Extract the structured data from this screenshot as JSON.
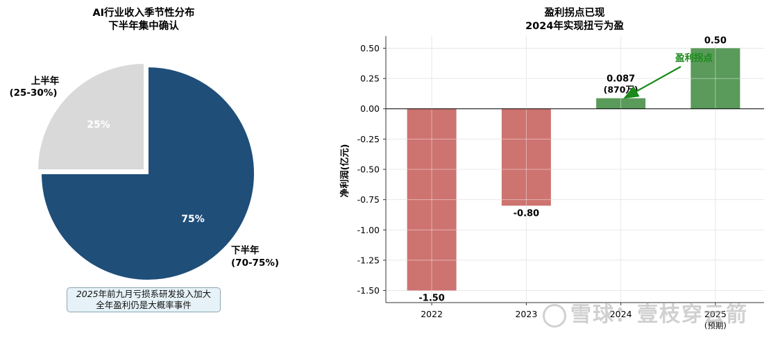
{
  "chart_data": [
    {
      "type": "pie",
      "title": "AI行业收入季节性分布",
      "subtitle": "下半年集中确认",
      "slices": [
        {
          "label": "上半年",
          "range_label": "(25-30%)",
          "value": 25,
          "pct_label": "25%",
          "color": "#d9d9d9",
          "exploded": true
        },
        {
          "label": "下半年",
          "range_label": "(70-75%)",
          "value": 75,
          "pct_label": "75%",
          "color": "#1f4e79",
          "exploded": false
        }
      ],
      "annotation": {
        "line1_year": "2025",
        "line1_rest": "年前九月亏损系研发投入加大",
        "line2": "全年盈利仍是大概率事件"
      }
    },
    {
      "type": "bar",
      "title": "盈利拐点已现",
      "subtitle": "2024年实现扭亏为盈",
      "ylabel": "净利润(亿元)",
      "xlabel": "",
      "ylim": [
        -1.6,
        0.6
      ],
      "yticks": [
        "-1.50",
        "-1.25",
        "-1.00",
        "-0.75",
        "-0.50",
        "-0.25",
        "0.00",
        "0.25",
        "0.50"
      ],
      "grid": true,
      "categories": [
        "2022",
        "2023",
        "2024",
        "2025"
      ],
      "category_sublabels": [
        "",
        "",
        "",
        "(预期)"
      ],
      "values": [
        -1.5,
        -0.8,
        0.087,
        0.5
      ],
      "value_labels": [
        "-1.50",
        "-0.80",
        "0.087",
        "0.50"
      ],
      "value_sublabels": [
        "",
        "",
        "(870万)",
        ""
      ],
      "colors": {
        "negative": "#cd7370",
        "positive": "#5a9a5a"
      },
      "annotation": {
        "text": "盈利拐点",
        "color": "#1a8a1a",
        "points_to": "2024"
      }
    }
  ],
  "watermark": "雪球：壹枝穿云箭"
}
